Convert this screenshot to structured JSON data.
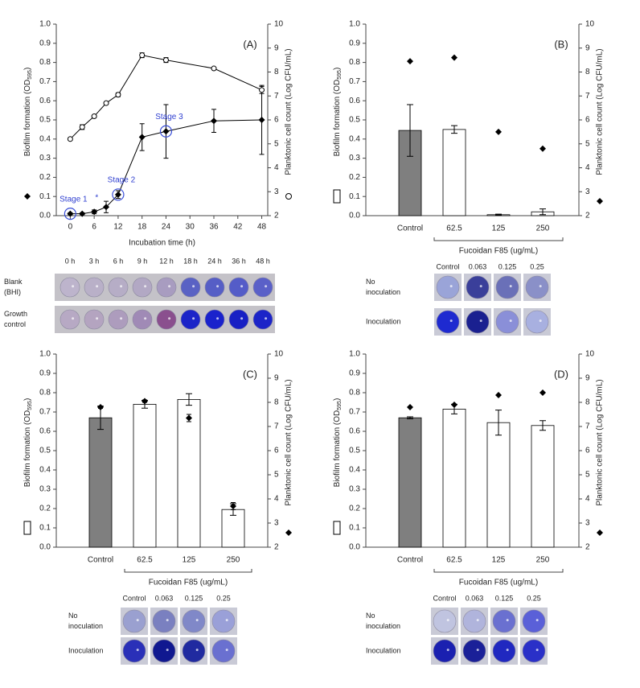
{
  "chart_data": [
    {
      "type": "line",
      "panel_label": "(A)",
      "ylabel": {
        "text": "Biofilm formation (OD",
        "sub": "595",
        "end": ")"
      },
      "y2label": "Planktonic cell count (Log CFU/mL)",
      "xlabel": "Incubation time (h)",
      "x": [
        0,
        3,
        6,
        9,
        12,
        18,
        24,
        36,
        48
      ],
      "xlim": [
        -3.5,
        49.5
      ],
      "xticks": [
        0,
        6,
        12,
        18,
        24,
        30,
        36,
        42,
        48
      ],
      "ylim": [
        0,
        1
      ],
      "yticks": [
        {
          "value": 0,
          "label": "0.0"
        },
        0.1,
        0.2,
        0.3,
        0.4,
        0.5,
        0.6,
        0.7,
        0.8,
        0.9,
        {
          "value": 1,
          "label": "1.0"
        }
      ],
      "y2lim": [
        2,
        10
      ],
      "y2ticks": [
        2,
        3,
        4,
        5,
        6,
        7,
        8,
        9,
        10
      ],
      "grid": false,
      "series": [
        {
          "marker": "diamond",
          "color": "#000000",
          "values": [
            0.01,
            0.01,
            0.02,
            0.045,
            0.11,
            0.41,
            0.44,
            0.495,
            0.5
          ],
          "errors": [
            0.005,
            0.005,
            0.01,
            0.03,
            0.02,
            0.07,
            0.14,
            0.06,
            0.18
          ]
        },
        {
          "marker": "circle",
          "color": "#000000",
          "axis": "y2",
          "values": [
            5.2,
            5.7,
            6.15,
            6.7,
            7.05,
            8.7,
            8.5,
            8.15,
            7.25
          ],
          "errors": [
            0.05,
            0.1,
            0.05,
            0.05,
            0.08,
            0.1,
            0.1,
            0.05,
            0.15
          ]
        }
      ],
      "annotations": [
        "Stage 1",
        "Stage 2",
        "Stage 3",
        "*"
      ],
      "plate": {
        "columns": [
          "0 h",
          "3 h",
          "6 h",
          "9 h",
          "12 h",
          "18 h",
          "24 h",
          "36 h",
          "48 h"
        ],
        "rows": [
          [
            "Blank",
            "(BHI)"
          ],
          [
            "Growth",
            "control"
          ]
        ]
      }
    },
    {
      "type": "bar",
      "panel_label": "(B)",
      "ylabel": {
        "text": "Biofilm formation (OD",
        "sub": "595",
        "end": ")"
      },
      "y2label": "Planktonic cell count (Log CFU/mL)",
      "xlabel": "Fucoidan F85 (ug/mL)",
      "categories": [
        "Control",
        "62.5",
        "125",
        "250"
      ],
      "ylim": [
        0,
        1
      ],
      "yticks": [
        {
          "value": 0,
          "label": "0.0"
        },
        0.1,
        0.2,
        0.3,
        0.4,
        0.5,
        0.6,
        0.7,
        0.8,
        0.9,
        {
          "value": 1,
          "label": "1.0"
        }
      ],
      "y2lim": [
        2,
        10
      ],
      "y2ticks": [
        2,
        3,
        4,
        5,
        6,
        7,
        8,
        9,
        10
      ],
      "grid": false,
      "series": [
        {
          "marker": "bar",
          "colors": [
            "#7f7f7f",
            "#ffffff",
            "#ffffff",
            "#ffffff"
          ],
          "values": [
            0.445,
            0.45,
            0.005,
            0.02
          ],
          "errors": [
            0.135,
            0.02,
            0.003,
            0.015
          ]
        },
        {
          "marker": "diamond",
          "color": "#000000",
          "axis": "y2",
          "values": [
            8.45,
            8.6,
            5.5,
            4.8
          ]
        }
      ],
      "plate": {
        "columns": [
          "Control",
          "0.063",
          "0.125",
          "0.25"
        ],
        "rows": [
          [
            "No",
            "inoculation"
          ],
          [
            "Inoculation"
          ]
        ]
      }
    },
    {
      "type": "bar",
      "panel_label": "(C)",
      "ylabel": {
        "text": "Biofilm formation (OD",
        "sub": "595",
        "end": ")"
      },
      "y2label": "Planktonic cell count (Log CFU/mL)",
      "xlabel": "Fucoidan F85 (ug/mL)",
      "categories": [
        "Control",
        "62.5",
        "125",
        "250"
      ],
      "ylim": [
        0,
        1
      ],
      "yticks": [
        {
          "value": 0,
          "label": "0.0"
        },
        0.1,
        0.2,
        0.3,
        0.4,
        0.5,
        0.6,
        0.7,
        0.8,
        0.9,
        {
          "value": 1,
          "label": "1.0"
        }
      ],
      "y2lim": [
        2,
        10
      ],
      "y2ticks": [
        2,
        3,
        4,
        5,
        6,
        7,
        8,
        9,
        10
      ],
      "grid": false,
      "series": [
        {
          "marker": "bar",
          "colors": [
            "#7f7f7f",
            "#ffffff",
            "#ffffff",
            "#ffffff"
          ],
          "values": [
            0.67,
            0.74,
            0.765,
            0.195
          ],
          "errors": [
            0.06,
            0.02,
            0.03,
            0.03
          ]
        },
        {
          "marker": "diamond",
          "color": "#000000",
          "axis": "y2",
          "values": [
            7.8,
            8.05,
            7.35,
            3.7
          ],
          "errors": [
            0.05,
            0.05,
            0.15,
            0.15
          ]
        }
      ],
      "plate": {
        "columns": [
          "Control",
          "0.063",
          "0.125",
          "0.25"
        ],
        "rows": [
          [
            "No",
            "inoculation"
          ],
          [
            "Inoculation"
          ]
        ]
      }
    },
    {
      "type": "bar",
      "panel_label": "(D)",
      "ylabel": {
        "text": "Biofilm formation (OD",
        "sub": "595",
        "end": ")"
      },
      "y2label": "Planktonic cell count (Log CFU/mL)",
      "xlabel": "Fucoidan F85 (ug/mL)",
      "categories": [
        "Control",
        "62.5",
        "125",
        "250"
      ],
      "ylim": [
        0,
        1
      ],
      "yticks": [
        {
          "value": 0,
          "label": "0.0"
        },
        0.1,
        0.2,
        0.3,
        0.4,
        0.5,
        0.6,
        0.7,
        0.8,
        0.9,
        {
          "value": 1,
          "label": "1.0"
        }
      ],
      "y2lim": [
        2,
        10
      ],
      "y2ticks": [
        2,
        3,
        4,
        5,
        6,
        7,
        8,
        9,
        10
      ],
      "grid": false,
      "series": [
        {
          "marker": "bar",
          "colors": [
            "#7f7f7f",
            "#ffffff",
            "#ffffff",
            "#ffffff"
          ],
          "values": [
            0.67,
            0.715,
            0.645,
            0.63
          ],
          "errors": [
            0.005,
            0.025,
            0.065,
            0.025
          ]
        },
        {
          "marker": "diamond",
          "color": "#000000",
          "axis": "y2",
          "values": [
            7.8,
            7.9,
            8.3,
            8.4
          ]
        }
      ],
      "plate": {
        "columns": [
          "Control",
          "0.063",
          "0.125",
          "0.25"
        ],
        "rows": [
          [
            "No",
            "inoculation"
          ],
          [
            "Inoculation"
          ]
        ]
      }
    }
  ]
}
